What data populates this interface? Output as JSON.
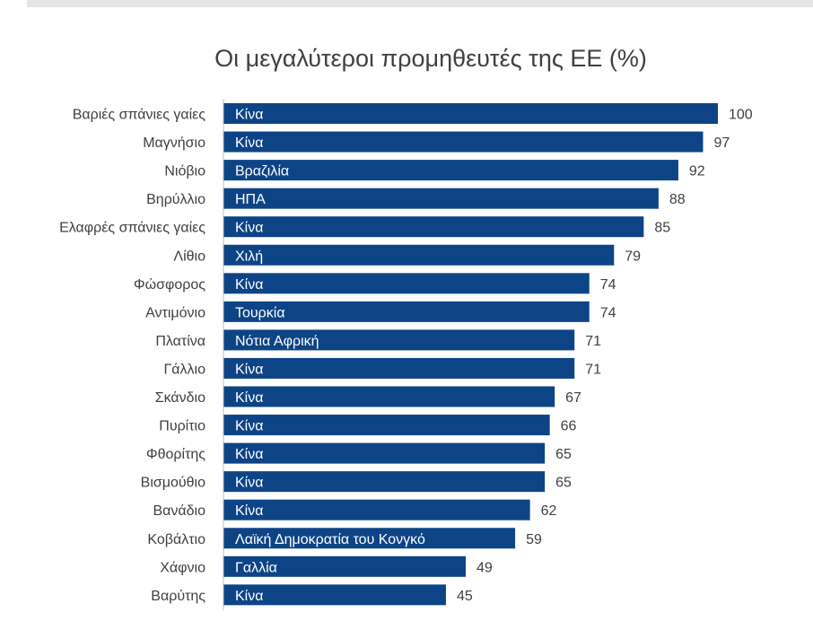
{
  "chart_data": {
    "type": "bar",
    "orientation": "horizontal",
    "title": "Οι μεγαλύτεροι προμηθευτές της ΕΕ (%)",
    "xlabel": "",
    "ylabel": "",
    "xlim": [
      0,
      100
    ],
    "grid": false,
    "bar_color": "#0d4486",
    "categories": [
      "Βαριές σπάνιες γαίες",
      "Μαγνήσιο",
      "Νιόβιο",
      "Βηρύλλιο",
      "Ελαφρές σπάνιες γαίες",
      "Λίθιο",
      "Φώσφορος",
      "Αντιμόνιο",
      "Πλατίνα",
      "Γάλλιο",
      "Σκάνδιο",
      "Πυρίτιο",
      "Φθορίτης",
      "Βισμούθιο",
      "Βανάδιο",
      "Κοβάλτιο",
      "Χάφνιο",
      "Βαρύτης"
    ],
    "values": [
      100,
      97,
      92,
      88,
      85,
      79,
      74,
      74,
      71,
      71,
      67,
      66,
      65,
      65,
      62,
      59,
      49,
      45
    ],
    "bar_labels": [
      "Κίνα",
      "Κίνα",
      "Βραζιλία",
      "ΗΠΑ",
      "Κίνα",
      "Χιλή",
      "Κίνα",
      "Τουρκία",
      "Νότια Αφρική",
      "Κίνα",
      "Κίνα",
      "Κίνα",
      "Κίνα",
      "Κίνα",
      "Κίνα",
      "Λαϊκή Δημοκρατία του Κονγκό",
      "Γαλλία",
      "Κίνα"
    ]
  }
}
